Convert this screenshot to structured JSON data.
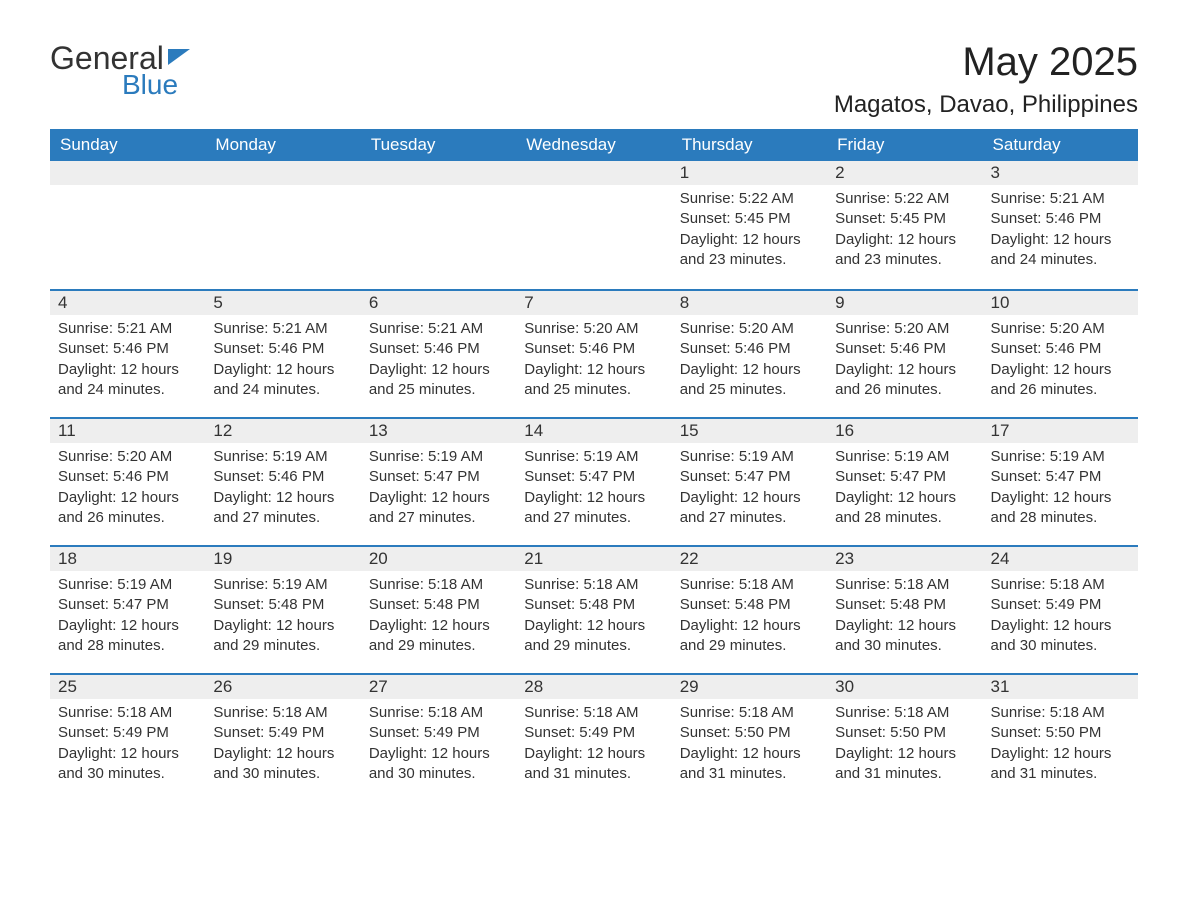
{
  "logo": {
    "text1": "General",
    "text2": "Blue"
  },
  "title": "May 2025",
  "subtitle": "Magatos, Davao, Philippines",
  "colors": {
    "brand_blue": "#2b7bbd",
    "header_bg": "#2b7bbd",
    "header_text": "#ffffff",
    "daybar_bg": "#eeeeee",
    "daybar_border": "#2b7bbd",
    "text": "#333333",
    "background": "#ffffff"
  },
  "fonts": {
    "title_size_pt": 30,
    "subtitle_size_pt": 18,
    "header_size_pt": 13,
    "daynum_size_pt": 13,
    "body_size_pt": 11
  },
  "columns": [
    "Sunday",
    "Monday",
    "Tuesday",
    "Wednesday",
    "Thursday",
    "Friday",
    "Saturday"
  ],
  "weeks": [
    [
      null,
      null,
      null,
      null,
      {
        "n": "1",
        "sr": "Sunrise: 5:22 AM",
        "ss": "Sunset: 5:45 PM",
        "dl": "Daylight: 12 hours and 23 minutes."
      },
      {
        "n": "2",
        "sr": "Sunrise: 5:22 AM",
        "ss": "Sunset: 5:45 PM",
        "dl": "Daylight: 12 hours and 23 minutes."
      },
      {
        "n": "3",
        "sr": "Sunrise: 5:21 AM",
        "ss": "Sunset: 5:46 PM",
        "dl": "Daylight: 12 hours and 24 minutes."
      }
    ],
    [
      {
        "n": "4",
        "sr": "Sunrise: 5:21 AM",
        "ss": "Sunset: 5:46 PM",
        "dl": "Daylight: 12 hours and 24 minutes."
      },
      {
        "n": "5",
        "sr": "Sunrise: 5:21 AM",
        "ss": "Sunset: 5:46 PM",
        "dl": "Daylight: 12 hours and 24 minutes."
      },
      {
        "n": "6",
        "sr": "Sunrise: 5:21 AM",
        "ss": "Sunset: 5:46 PM",
        "dl": "Daylight: 12 hours and 25 minutes."
      },
      {
        "n": "7",
        "sr": "Sunrise: 5:20 AM",
        "ss": "Sunset: 5:46 PM",
        "dl": "Daylight: 12 hours and 25 minutes."
      },
      {
        "n": "8",
        "sr": "Sunrise: 5:20 AM",
        "ss": "Sunset: 5:46 PM",
        "dl": "Daylight: 12 hours and 25 minutes."
      },
      {
        "n": "9",
        "sr": "Sunrise: 5:20 AM",
        "ss": "Sunset: 5:46 PM",
        "dl": "Daylight: 12 hours and 26 minutes."
      },
      {
        "n": "10",
        "sr": "Sunrise: 5:20 AM",
        "ss": "Sunset: 5:46 PM",
        "dl": "Daylight: 12 hours and 26 minutes."
      }
    ],
    [
      {
        "n": "11",
        "sr": "Sunrise: 5:20 AM",
        "ss": "Sunset: 5:46 PM",
        "dl": "Daylight: 12 hours and 26 minutes."
      },
      {
        "n": "12",
        "sr": "Sunrise: 5:19 AM",
        "ss": "Sunset: 5:46 PM",
        "dl": "Daylight: 12 hours and 27 minutes."
      },
      {
        "n": "13",
        "sr": "Sunrise: 5:19 AM",
        "ss": "Sunset: 5:47 PM",
        "dl": "Daylight: 12 hours and 27 minutes."
      },
      {
        "n": "14",
        "sr": "Sunrise: 5:19 AM",
        "ss": "Sunset: 5:47 PM",
        "dl": "Daylight: 12 hours and 27 minutes."
      },
      {
        "n": "15",
        "sr": "Sunrise: 5:19 AM",
        "ss": "Sunset: 5:47 PM",
        "dl": "Daylight: 12 hours and 27 minutes."
      },
      {
        "n": "16",
        "sr": "Sunrise: 5:19 AM",
        "ss": "Sunset: 5:47 PM",
        "dl": "Daylight: 12 hours and 28 minutes."
      },
      {
        "n": "17",
        "sr": "Sunrise: 5:19 AM",
        "ss": "Sunset: 5:47 PM",
        "dl": "Daylight: 12 hours and 28 minutes."
      }
    ],
    [
      {
        "n": "18",
        "sr": "Sunrise: 5:19 AM",
        "ss": "Sunset: 5:47 PM",
        "dl": "Daylight: 12 hours and 28 minutes."
      },
      {
        "n": "19",
        "sr": "Sunrise: 5:19 AM",
        "ss": "Sunset: 5:48 PM",
        "dl": "Daylight: 12 hours and 29 minutes."
      },
      {
        "n": "20",
        "sr": "Sunrise: 5:18 AM",
        "ss": "Sunset: 5:48 PM",
        "dl": "Daylight: 12 hours and 29 minutes."
      },
      {
        "n": "21",
        "sr": "Sunrise: 5:18 AM",
        "ss": "Sunset: 5:48 PM",
        "dl": "Daylight: 12 hours and 29 minutes."
      },
      {
        "n": "22",
        "sr": "Sunrise: 5:18 AM",
        "ss": "Sunset: 5:48 PM",
        "dl": "Daylight: 12 hours and 29 minutes."
      },
      {
        "n": "23",
        "sr": "Sunrise: 5:18 AM",
        "ss": "Sunset: 5:48 PM",
        "dl": "Daylight: 12 hours and 30 minutes."
      },
      {
        "n": "24",
        "sr": "Sunrise: 5:18 AM",
        "ss": "Sunset: 5:49 PM",
        "dl": "Daylight: 12 hours and 30 minutes."
      }
    ],
    [
      {
        "n": "25",
        "sr": "Sunrise: 5:18 AM",
        "ss": "Sunset: 5:49 PM",
        "dl": "Daylight: 12 hours and 30 minutes."
      },
      {
        "n": "26",
        "sr": "Sunrise: 5:18 AM",
        "ss": "Sunset: 5:49 PM",
        "dl": "Daylight: 12 hours and 30 minutes."
      },
      {
        "n": "27",
        "sr": "Sunrise: 5:18 AM",
        "ss": "Sunset: 5:49 PM",
        "dl": "Daylight: 12 hours and 30 minutes."
      },
      {
        "n": "28",
        "sr": "Sunrise: 5:18 AM",
        "ss": "Sunset: 5:49 PM",
        "dl": "Daylight: 12 hours and 31 minutes."
      },
      {
        "n": "29",
        "sr": "Sunrise: 5:18 AM",
        "ss": "Sunset: 5:50 PM",
        "dl": "Daylight: 12 hours and 31 minutes."
      },
      {
        "n": "30",
        "sr": "Sunrise: 5:18 AM",
        "ss": "Sunset: 5:50 PM",
        "dl": "Daylight: 12 hours and 31 minutes."
      },
      {
        "n": "31",
        "sr": "Sunrise: 5:18 AM",
        "ss": "Sunset: 5:50 PM",
        "dl": "Daylight: 12 hours and 31 minutes."
      }
    ]
  ]
}
